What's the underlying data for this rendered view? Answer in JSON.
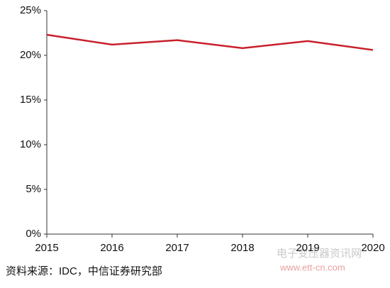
{
  "chart_data": {
    "type": "line",
    "categories": [
      "2015",
      "2016",
      "2017",
      "2018",
      "2019",
      "2020"
    ],
    "series": [
      {
        "color": "#c8202c",
        "values": [
          22.3,
          21.2,
          21.7,
          20.8,
          21.6,
          20.6
        ]
      }
    ],
    "ylim": [
      0,
      25
    ],
    "yticks": [
      {
        "value": 0,
        "label": "0%"
      },
      {
        "value": 5,
        "label": "5%"
      },
      {
        "value": 10,
        "label": "10%"
      },
      {
        "value": 15,
        "label": "15%"
      },
      {
        "value": 20,
        "label": "20%"
      },
      {
        "value": 25,
        "label": "25%"
      }
    ],
    "source": "资料来源：IDC，中信证券研究部",
    "watermark": "电子变压器资讯网",
    "watermark_url": "www.ett-cn.com"
  }
}
